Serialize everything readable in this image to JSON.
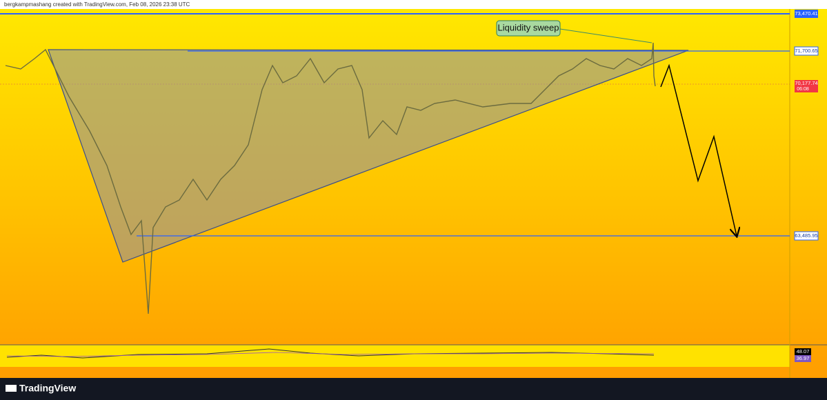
{
  "header": {
    "text": "bergkampmashang created with TradingView.com, Feb 08, 2026 23:38 UTC"
  },
  "annotation": "Liquidity sweep",
  "price_labels": [
    "73,470.41",
    "71,700.65",
    "70,177.74",
    "06:08",
    "63,485.95"
  ],
  "indicator_labels": [
    "48.07",
    "36.97"
  ],
  "footer": {
    "brand": "TradingView"
  }
}
